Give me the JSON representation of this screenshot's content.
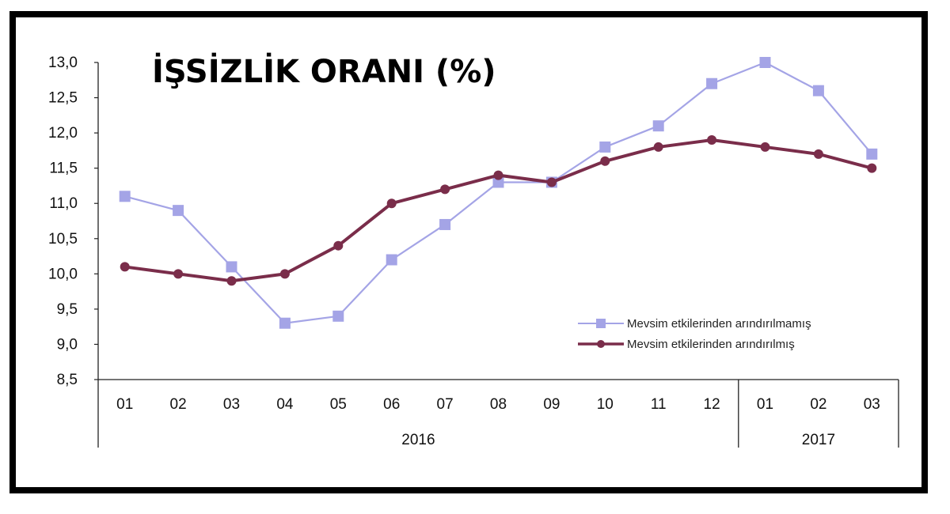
{
  "chart_data": {
    "type": "line",
    "title": "İŞSİZLİK ORANI (%)",
    "categories": [
      "01",
      "02",
      "03",
      "04",
      "05",
      "06",
      "07",
      "08",
      "09",
      "10",
      "11",
      "12",
      "01",
      "02",
      "03"
    ],
    "year_groups": [
      {
        "label": "2016",
        "count": 12
      },
      {
        "label": "2017",
        "count": 3
      }
    ],
    "ylim": [
      8.5,
      13.0
    ],
    "yticks": [
      "8,5",
      "9,0",
      "9,5",
      "10,0",
      "10,5",
      "11,0",
      "11,5",
      "12,0",
      "12,5",
      "13,0"
    ],
    "series": [
      {
        "name": "Mevsim etkilerinden arındırılmamış",
        "color": "#a4a4e6",
        "marker": "square",
        "values": [
          11.1,
          10.9,
          10.1,
          9.3,
          9.4,
          10.2,
          10.7,
          11.3,
          11.3,
          11.8,
          12.1,
          12.7,
          13.0,
          12.6,
          11.7
        ]
      },
      {
        "name": "Mevsim etkilerinden arındırılmış",
        "color": "#7a2d4a",
        "marker": "circle",
        "values": [
          10.1,
          10.0,
          9.9,
          10.0,
          10.4,
          11.0,
          11.2,
          11.4,
          11.3,
          11.6,
          11.8,
          11.9,
          11.8,
          11.7,
          11.5
        ]
      }
    ],
    "legend_position": "bottom-right",
    "grid": false
  }
}
